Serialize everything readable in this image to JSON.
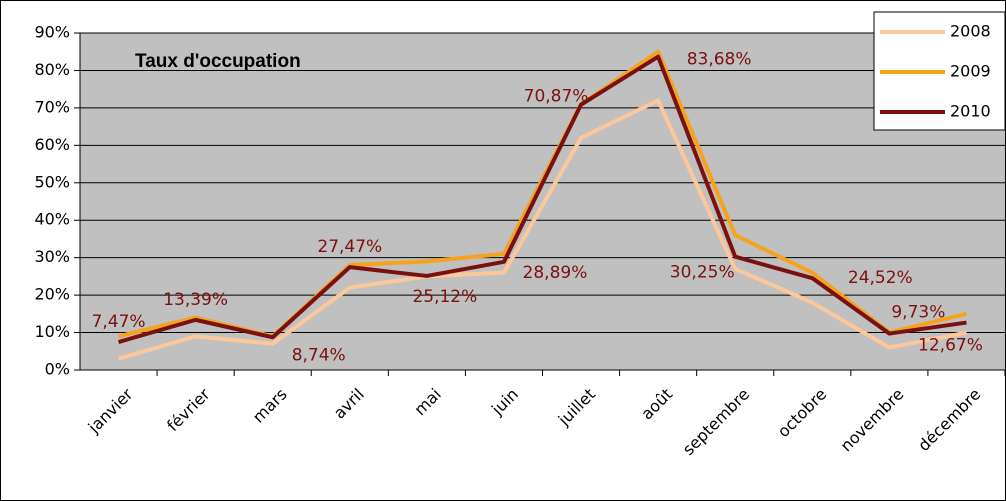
{
  "chart_data": {
    "type": "line",
    "title": "Taux d'occupation",
    "categories": [
      "janvier",
      "février",
      "mars",
      "avril",
      "mai",
      "juin",
      "juillet",
      "août",
      "septembre",
      "octobre",
      "novembre",
      "décembre"
    ],
    "series": [
      {
        "name": "2008",
        "color": "#fcc89b",
        "values": [
          3,
          9,
          7,
          22,
          25,
          26,
          62,
          72,
          27,
          18,
          6,
          10
        ]
      },
      {
        "name": "2009",
        "color": "#f5a21c",
        "values": [
          9,
          14,
          9,
          28,
          29,
          31,
          71,
          85,
          36,
          26,
          10,
          15
        ]
      },
      {
        "name": "2010",
        "color": "#7b1010",
        "values": [
          7.47,
          13.39,
          8.74,
          27.47,
          25.12,
          28.89,
          70.87,
          83.68,
          30.25,
          24.52,
          9.73,
          12.67
        ],
        "value_labels": [
          "7,47%",
          "13,39%",
          "8,74%",
          "27,47%",
          "25,12%",
          "28,89%",
          "70,87%",
          "83,68%",
          "30,25%",
          "24,52%",
          "9,73%",
          "12,67%"
        ]
      }
    ],
    "ylim": [
      0,
      90
    ],
    "yticks": [
      {
        "value": 0,
        "label": "0%"
      },
      {
        "value": 10,
        "label": "10%"
      },
      {
        "value": 20,
        "label": "20%"
      },
      {
        "value": 30,
        "label": "30%"
      },
      {
        "value": 40,
        "label": "40%"
      },
      {
        "value": 50,
        "label": "50%"
      },
      {
        "value": 60,
        "label": "60%"
      },
      {
        "value": 70,
        "label": "70%"
      },
      {
        "value": 80,
        "label": "80%"
      },
      {
        "value": 90,
        "label": "90%"
      }
    ],
    "grid": true,
    "legend": "top-right",
    "plot_background": "#c0c0c0"
  }
}
